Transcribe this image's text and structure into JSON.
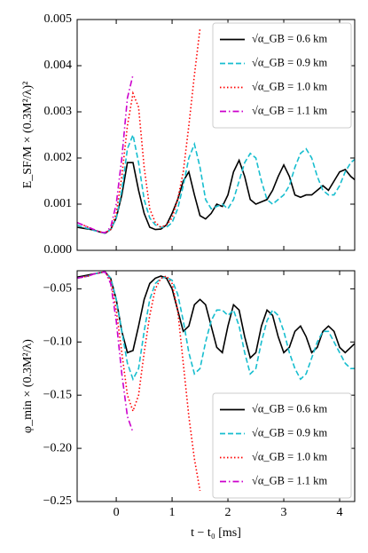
{
  "chart_data": [
    {
      "type": "line",
      "ylabel": "E_SF/M × (0.3M²/λ)²",
      "x": [
        -0.7,
        -0.6,
        -0.5,
        -0.4,
        -0.3,
        -0.2,
        -0.1,
        0,
        0.1,
        0.2,
        0.3,
        0.4,
        0.5,
        0.6,
        0.7,
        0.8,
        0.9,
        1.0,
        1.1,
        1.2,
        1.3,
        1.4,
        1.5,
        1.6,
        1.7,
        1.8,
        1.9,
        2.0,
        2.1,
        2.2,
        2.3,
        2.4,
        2.5,
        2.6,
        2.7,
        2.8,
        2.9,
        3.0,
        3.1,
        3.2,
        3.3,
        3.4,
        3.5,
        3.6,
        3.7,
        3.8,
        3.9,
        4.0,
        4.1,
        4.2,
        4.3
      ],
      "xlim": [
        -0.7,
        4.27
      ],
      "xticks": [
        0,
        1,
        2,
        3,
        4
      ],
      "ylim": [
        0,
        0.005
      ],
      "yticks": [
        {
          "value": 0,
          "label": "0.000"
        },
        {
          "value": 0.001,
          "label": "0.001"
        },
        {
          "value": 0.002,
          "label": "0.002"
        },
        {
          "value": 0.003,
          "label": "0.003"
        },
        {
          "value": 0.004,
          "label": "0.004"
        },
        {
          "value": 0.005,
          "label": "0.005"
        }
      ],
      "legend": "upper right",
      "series": [
        {
          "name": "√α_GB = 0.6 km",
          "color": "#000000",
          "style": "solid",
          "values": [
            0.0005,
            0.00048,
            0.00046,
            0.00044,
            0.0004,
            0.00037,
            0.00045,
            0.0007,
            0.0012,
            0.0019,
            0.0019,
            0.0013,
            0.0008,
            0.0005,
            0.00045,
            0.00046,
            0.00055,
            0.0008,
            0.0011,
            0.0015,
            0.0017,
            0.0012,
            0.00075,
            0.00068,
            0.0008,
            0.001,
            0.00095,
            0.0012,
            0.0017,
            0.00195,
            0.0016,
            0.0011,
            0.001,
            0.00105,
            0.0011,
            0.0013,
            0.0016,
            0.00185,
            0.0016,
            0.0012,
            0.00115,
            0.0012,
            0.0012,
            0.0013,
            0.0014,
            0.0013,
            0.0015,
            0.0017,
            0.00175,
            0.0016,
            0.0015
          ]
        },
        {
          "name": "√α_GB = 0.9 km",
          "color": "#17becf",
          "style": "dashed",
          "values": [
            0.00055,
            0.0005,
            0.00047,
            0.00043,
            0.0004,
            0.00037,
            0.00045,
            0.0007,
            0.0013,
            0.0022,
            0.0025,
            0.0019,
            0.0011,
            0.0007,
            0.00055,
            0.0005,
            0.0005,
            0.0006,
            0.0009,
            0.0014,
            0.002,
            0.0023,
            0.0018,
            0.0011,
            0.0009,
            0.00095,
            0.001,
            0.0009,
            0.0011,
            0.0015,
            0.0019,
            0.0021,
            0.002,
            0.0015,
            0.0011,
            0.001,
            0.0011,
            0.0012,
            0.0014,
            0.0018,
            0.0021,
            0.0022,
            0.002,
            0.0016,
            0.0013,
            0.0012,
            0.0012,
            0.0014,
            0.0017,
            0.0019,
            0.002
          ]
        },
        {
          "name": "√α_GB = 1.0 km",
          "color": "#ff0000",
          "style": "dotted",
          "values": [
            0.0006,
            0.00055,
            0.0005,
            0.00045,
            0.0004,
            0.00038,
            0.00045,
            0.0008,
            0.0016,
            0.0027,
            0.0034,
            0.0031,
            0.0018,
            0.0009,
            0.0006,
            0.0005,
            0.00055,
            0.0007,
            0.0011,
            0.0017,
            0.0027,
            0.0038,
            0.0048,
            null,
            null,
            null,
            null,
            null,
            null,
            null,
            null,
            null,
            null,
            null,
            null,
            null,
            null,
            null,
            null,
            null,
            null,
            null,
            null,
            null,
            null,
            null,
            null,
            null,
            null,
            null,
            null
          ]
        },
        {
          "name": "√α_GB = 1.1 km",
          "color": "#cc00cc",
          "style": "dashdot",
          "values": [
            0.0006,
            0.00055,
            0.0005,
            0.00045,
            0.0004,
            0.00038,
            0.0005,
            0.001,
            0.002,
            0.0033,
            0.0038,
            null,
            null,
            null,
            null,
            null,
            null,
            null,
            null,
            null,
            null,
            null,
            null,
            null,
            null,
            null,
            null,
            null,
            null,
            null,
            null,
            null,
            null,
            null,
            null,
            null,
            null,
            null,
            null,
            null,
            null,
            null,
            null,
            null,
            null,
            null,
            null,
            null,
            null,
            null,
            null
          ]
        }
      ]
    },
    {
      "type": "line",
      "ylabel": "φ_min × (0.3M²/λ)",
      "xlabel": "t − t₀ [ms]",
      "x": [
        -0.7,
        -0.6,
        -0.5,
        -0.4,
        -0.3,
        -0.2,
        -0.1,
        0,
        0.1,
        0.2,
        0.3,
        0.4,
        0.5,
        0.6,
        0.7,
        0.8,
        0.9,
        1.0,
        1.1,
        1.2,
        1.3,
        1.4,
        1.5,
        1.6,
        1.7,
        1.8,
        1.9,
        2.0,
        2.1,
        2.2,
        2.3,
        2.4,
        2.5,
        2.6,
        2.7,
        2.8,
        2.9,
        3.0,
        3.1,
        3.2,
        3.3,
        3.4,
        3.5,
        3.6,
        3.7,
        3.8,
        3.9,
        4.0,
        4.1,
        4.2,
        4.3
      ],
      "xlim": [
        -0.7,
        4.27
      ],
      "xticks": [
        0,
        1,
        2,
        3,
        4
      ],
      "ylim": [
        -0.25,
        -0.033
      ],
      "yticks": [
        {
          "value": -0.25,
          "label": "−0.25"
        },
        {
          "value": -0.2,
          "label": "−0.20"
        },
        {
          "value": -0.15,
          "label": "−0.15"
        },
        {
          "value": -0.1,
          "label": "−0.10"
        },
        {
          "value": -0.05,
          "label": "−0.05"
        }
      ],
      "legend": "lower right",
      "series": [
        {
          "name": "√α_GB = 0.6 km",
          "color": "#000000",
          "style": "solid",
          "values": [
            -0.039,
            -0.038,
            -0.037,
            -0.036,
            -0.035,
            -0.034,
            -0.04,
            -0.06,
            -0.09,
            -0.11,
            -0.108,
            -0.085,
            -0.06,
            -0.045,
            -0.04,
            -0.038,
            -0.04,
            -0.05,
            -0.07,
            -0.09,
            -0.085,
            -0.065,
            -0.06,
            -0.065,
            -0.085,
            -0.105,
            -0.11,
            -0.085,
            -0.065,
            -0.07,
            -0.095,
            -0.115,
            -0.11,
            -0.085,
            -0.07,
            -0.075,
            -0.095,
            -0.11,
            -0.105,
            -0.09,
            -0.085,
            -0.095,
            -0.11,
            -0.105,
            -0.09,
            -0.085,
            -0.09,
            -0.105,
            -0.11,
            -0.105,
            -0.1
          ]
        },
        {
          "name": "√α_GB = 0.9 km",
          "color": "#17becf",
          "style": "dashed",
          "values": [
            -0.04,
            -0.039,
            -0.038,
            -0.036,
            -0.035,
            -0.034,
            -0.04,
            -0.06,
            -0.09,
            -0.12,
            -0.135,
            -0.125,
            -0.09,
            -0.06,
            -0.045,
            -0.04,
            -0.039,
            -0.042,
            -0.055,
            -0.08,
            -0.11,
            -0.13,
            -0.125,
            -0.1,
            -0.08,
            -0.07,
            -0.07,
            -0.075,
            -0.07,
            -0.085,
            -0.11,
            -0.13,
            -0.125,
            -0.1,
            -0.08,
            -0.07,
            -0.075,
            -0.09,
            -0.11,
            -0.125,
            -0.135,
            -0.13,
            -0.115,
            -0.1,
            -0.09,
            -0.09,
            -0.1,
            -0.11,
            -0.12,
            -0.125,
            -0.125
          ]
        },
        {
          "name": "√α_GB = 1.0 km",
          "color": "#ff0000",
          "style": "dotted",
          "values": [
            -0.04,
            -0.039,
            -0.038,
            -0.036,
            -0.035,
            -0.034,
            -0.042,
            -0.07,
            -0.11,
            -0.15,
            -0.165,
            -0.15,
            -0.11,
            -0.075,
            -0.05,
            -0.04,
            -0.038,
            -0.045,
            -0.07,
            -0.12,
            -0.17,
            -0.21,
            -0.24,
            null,
            null,
            null,
            null,
            null,
            null,
            null,
            null,
            null,
            null,
            null,
            null,
            null,
            null,
            null,
            null,
            null,
            null,
            null,
            null,
            null,
            null,
            null,
            null,
            null,
            null,
            null,
            null
          ]
        },
        {
          "name": "√α_GB = 1.1 km",
          "color": "#cc00cc",
          "style": "dashdot",
          "values": [
            -0.04,
            -0.039,
            -0.038,
            -0.036,
            -0.035,
            -0.034,
            -0.045,
            -0.08,
            -0.13,
            -0.17,
            -0.185,
            null,
            null,
            null,
            null,
            null,
            null,
            null,
            null,
            null,
            null,
            null,
            null,
            null,
            null,
            null,
            null,
            null,
            null,
            null,
            null,
            null,
            null,
            null,
            null,
            null,
            null,
            null,
            null,
            null,
            null,
            null,
            null,
            null,
            null,
            null,
            null,
            null,
            null,
            null,
            null
          ]
        }
      ]
    }
  ]
}
